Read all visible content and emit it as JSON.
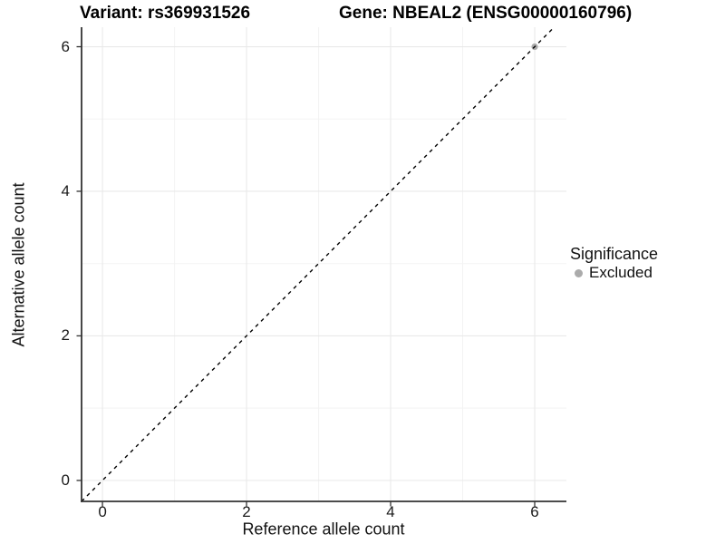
{
  "figure": {
    "title_variant": "Variant: rs369931526",
    "title_gene": "Gene: NBEAL2 (ENSG00000160796)"
  },
  "chart_data": {
    "type": "scatter",
    "title": "Variant: rs369931526   Gene: NBEAL2 (ENSG00000160796)",
    "xlabel": "Reference allele count",
    "ylabel": "Alternative allele count",
    "xlim": [
      -0.29,
      6.44
    ],
    "ylim": [
      -0.29,
      6.27
    ],
    "xticks": [
      0,
      2,
      4,
      6
    ],
    "yticks": [
      0,
      2,
      4,
      6
    ],
    "xticks_minor": [
      1,
      3,
      5
    ],
    "yticks_minor": [
      1,
      3,
      5
    ],
    "grid": true,
    "series": [
      {
        "name": "Excluded",
        "marker": "circle",
        "color": "#ababab",
        "points": [
          [
            6,
            6
          ]
        ]
      }
    ],
    "reference_line": {
      "type": "identity",
      "equation": "y = x",
      "style": "dashed",
      "color": "#000000",
      "from": [
        -0.29,
        -0.29
      ],
      "to": [
        6.27,
        6.27
      ]
    },
    "legend": {
      "title": "Significance",
      "position": "right",
      "items": [
        {
          "label": "Excluded",
          "marker": "circle",
          "color": "#ababab"
        }
      ]
    }
  },
  "colors": {
    "background": "#ffffff",
    "grid_major": "#e9e9e9",
    "grid_minor": "#f3f3f3",
    "axis_line": "#333333",
    "tick_mark": "#333333",
    "text": "#111111",
    "point": "#ababab",
    "dashed_line": "#000000"
  }
}
